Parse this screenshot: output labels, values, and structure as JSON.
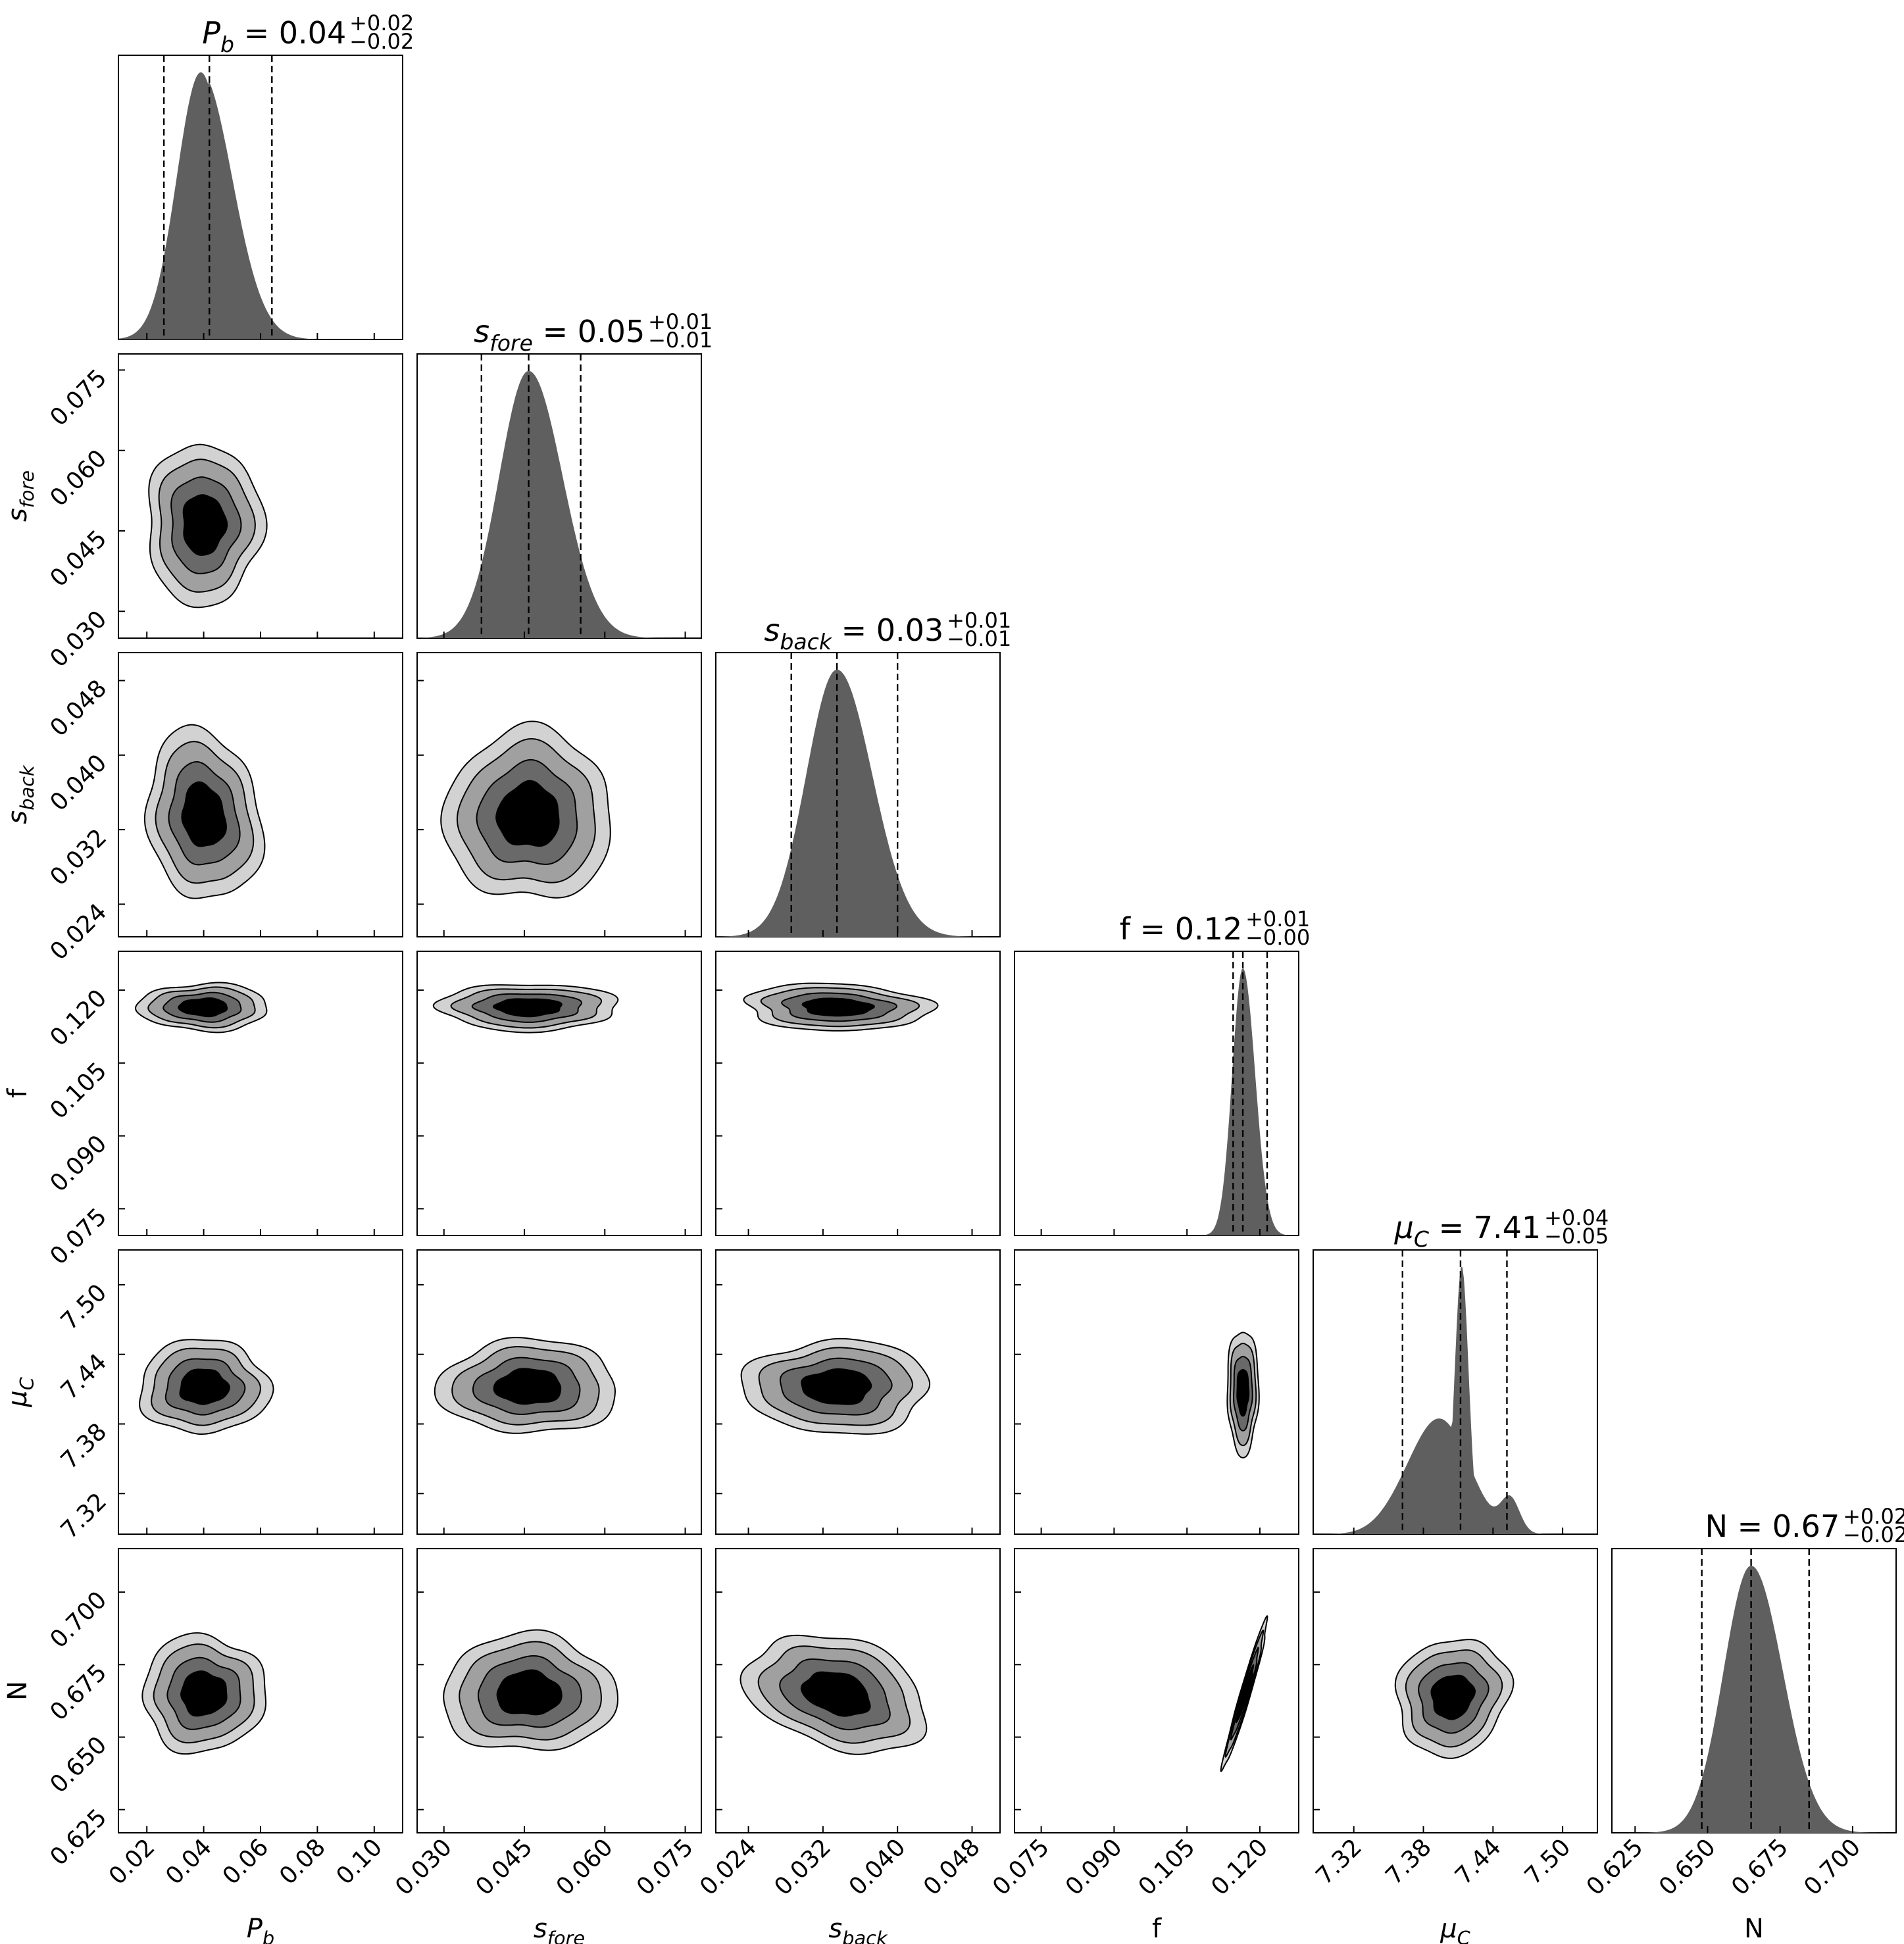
{
  "chart_data": {
    "type": "corner",
    "parameters": [
      {
        "key": "Pb",
        "symbol": "P",
        "sub": "b",
        "italic": true,
        "range": [
          0.01,
          0.11
        ],
        "ticks": [
          0.02,
          0.04,
          0.06,
          0.08,
          0.1
        ],
        "tick_labels": [
          "0.02",
          "0.04",
          "0.06",
          "0.08",
          "0.10"
        ],
        "median": 0.042,
        "q_low": 0.026,
        "q_high": 0.064,
        "sigma": 0.01,
        "title": {
          "value": "0.04",
          "plus": "+0.02",
          "minus": "−0.02"
        }
      },
      {
        "key": "sfore",
        "symbol": "s",
        "sub": "fore",
        "italic": true,
        "range": [
          0.025,
          0.078
        ],
        "ticks": [
          0.03,
          0.045,
          0.06,
          0.075
        ],
        "tick_labels": [
          "0.030",
          "0.045",
          "0.060",
          "0.075"
        ],
        "median": 0.0458,
        "q_low": 0.037,
        "q_high": 0.0555,
        "sigma": 0.0055,
        "title": {
          "value": "0.05",
          "plus": "+0.01",
          "minus": "−0.01"
        }
      },
      {
        "key": "sback",
        "symbol": "s",
        "sub": "back",
        "italic": true,
        "range": [
          0.0205,
          0.051
        ],
        "ticks": [
          0.024,
          0.032,
          0.04,
          0.048
        ],
        "tick_labels": [
          "0.024",
          "0.032",
          "0.040",
          "0.048"
        ],
        "median": 0.0335,
        "q_low": 0.0286,
        "q_high": 0.04,
        "sigma": 0.0033,
        "title": {
          "value": "0.03",
          "plus": "+0.01",
          "minus": "−0.01"
        }
      },
      {
        "key": "f",
        "symbol": "f",
        "sub": "",
        "italic": false,
        "range": [
          0.0695,
          0.128
        ],
        "ticks": [
          0.075,
          0.09,
          0.105,
          0.12
        ],
        "tick_labels": [
          "0.075",
          "0.090",
          "0.105",
          "0.120"
        ],
        "median": 0.1165,
        "q_low": 0.1145,
        "q_high": 0.1215,
        "sigma": 0.0022,
        "title": {
          "value": "0.12",
          "plus": "+0.01",
          "minus": "−0.00"
        }
      },
      {
        "key": "muC",
        "symbol": "μ",
        "sub": "C",
        "italic": true,
        "range": [
          7.285,
          7.53
        ],
        "ticks": [
          7.32,
          7.38,
          7.44,
          7.5
        ],
        "tick_labels": [
          "7.32",
          "7.38",
          "7.44",
          "7.50"
        ],
        "median": 7.412,
        "q_low": 7.362,
        "q_high": 7.452,
        "sigma": 0.025,
        "title": {
          "value": "7.41",
          "plus": "+0.04",
          "minus": "−0.05"
        }
      },
      {
        "key": "N",
        "symbol": "N",
        "sub": "",
        "italic": false,
        "range": [
          0.617,
          0.715
        ],
        "ticks": [
          0.625,
          0.65,
          0.675,
          0.7
        ],
        "tick_labels": [
          "0.625",
          "0.650",
          "0.675",
          "0.700"
        ],
        "median": 0.665,
        "q_low": 0.648,
        "q_high": 0.685,
        "sigma": 0.0095,
        "title": {
          "value": "0.67",
          "plus": "+0.02",
          "minus": "−0.02"
        }
      }
    ],
    "pairs": [
      {
        "x": "Pb",
        "y": "sfore",
        "cx": 0.04,
        "cy": 0.0462,
        "wx": 0.0075,
        "wy": 0.0056,
        "rho": 0.0
      },
      {
        "x": "Pb",
        "y": "sback",
        "cx": 0.04,
        "cy": 0.0335,
        "wx": 0.0075,
        "wy": 0.0034,
        "rho": -0.15
      },
      {
        "x": "sfore",
        "y": "sback",
        "cx": 0.0458,
        "cy": 0.0335,
        "wx": 0.0058,
        "wy": 0.0034,
        "rho": 0.0
      },
      {
        "x": "Pb",
        "y": "f",
        "cx": 0.04,
        "cy": 0.1165,
        "wx": 0.0085,
        "wy": 0.0018,
        "rho": 0.0
      },
      {
        "x": "sfore",
        "y": "f",
        "cx": 0.0458,
        "cy": 0.1165,
        "wx": 0.0062,
        "wy": 0.0018,
        "rho": 0.0
      },
      {
        "x": "sback",
        "y": "f",
        "cx": 0.0335,
        "cy": 0.1165,
        "wx": 0.0037,
        "wy": 0.0018,
        "rho": -0.1
      },
      {
        "x": "Pb",
        "y": "muC",
        "cx": 0.04,
        "cy": 7.412,
        "wx": 0.0085,
        "wy": 0.015,
        "rho": 0.0
      },
      {
        "x": "sfore",
        "y": "muC",
        "cx": 0.0458,
        "cy": 7.412,
        "wx": 0.0062,
        "wy": 0.015,
        "rho": 0.0
      },
      {
        "x": "sback",
        "y": "muC",
        "cx": 0.0335,
        "cy": 7.412,
        "wx": 0.0037,
        "wy": 0.015,
        "rho": 0.0
      },
      {
        "x": "f",
        "y": "muC",
        "cx": 0.1165,
        "cy": 7.408,
        "wx": 0.0012,
        "wy": 0.02,
        "rho": 0.0
      },
      {
        "x": "Pb",
        "y": "N",
        "cx": 0.04,
        "cy": 0.665,
        "wx": 0.008,
        "wy": 0.0075,
        "rho": 0.0
      },
      {
        "x": "sfore",
        "y": "N",
        "cx": 0.0458,
        "cy": 0.665,
        "wx": 0.006,
        "wy": 0.0075,
        "rho": 0.0
      },
      {
        "x": "sback",
        "y": "N",
        "cx": 0.0335,
        "cy": 0.665,
        "wx": 0.0036,
        "wy": 0.0075,
        "rho": -0.3
      },
      {
        "x": "f",
        "y": "N",
        "cx": 0.117,
        "cy": 0.665,
        "wx": 0.0017,
        "wy": 0.0095,
        "rho": 0.97
      },
      {
        "x": "muC",
        "y": "N",
        "cx": 7.405,
        "cy": 0.664,
        "wx": 0.018,
        "wy": 0.0075,
        "rho": 0.1
      }
    ],
    "contour_levels": [
      1.0,
      1.6,
      2.2,
      2.7
    ],
    "contour_fills": [
      "#d2d2d2",
      "#a0a0a0",
      "#696969",
      "#000000"
    ]
  }
}
